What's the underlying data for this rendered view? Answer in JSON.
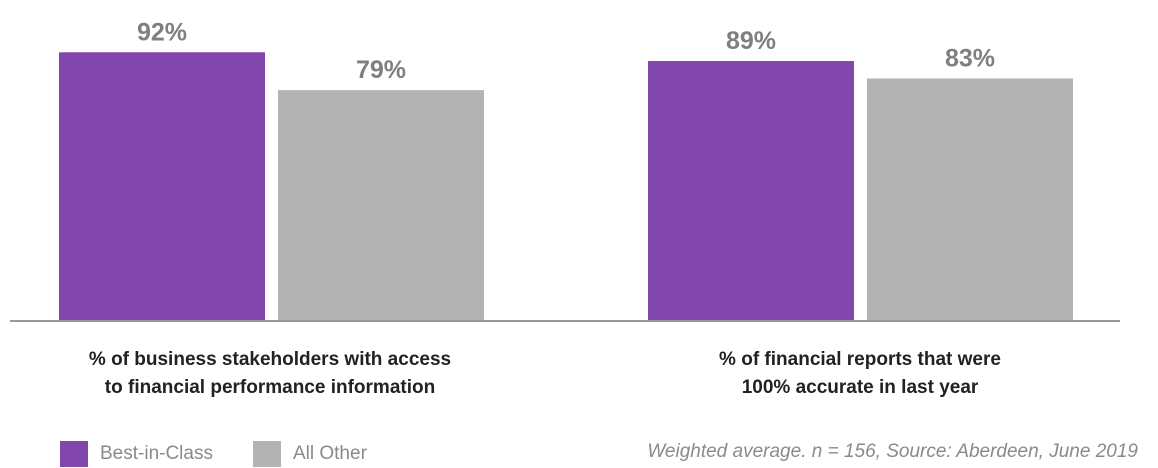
{
  "colors": {
    "best": "#8147ad",
    "other": "#b3b3b3",
    "axis": "#999999",
    "value_text": "#7f7f7f"
  },
  "chart_data": {
    "type": "bar",
    "categories": [
      "% of business stakeholders with access to financial performance information",
      "% of financial reports that were 100% accurate in last year"
    ],
    "category_lines": [
      [
        "% of business stakeholders with access",
        "to financial performance information"
      ],
      [
        "% of financial reports that were",
        "100% accurate in last year"
      ]
    ],
    "series": [
      {
        "name": "Best-in-Class",
        "values": [
          92,
          89
        ],
        "labels": [
          "92%",
          "89%"
        ]
      },
      {
        "name": "All Other",
        "values": [
          79,
          83
        ],
        "labels": [
          "79%",
          "83%"
        ]
      }
    ],
    "ylim": [
      0,
      100
    ],
    "grid": false,
    "legend_position": "bottom-left",
    "note": "Weighted average. n = 156, Source: Aberdeen, June 2019"
  }
}
